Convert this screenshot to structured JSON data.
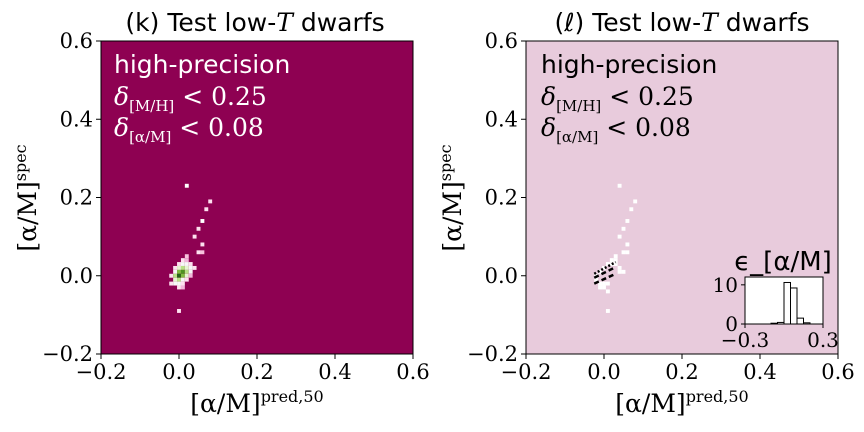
{
  "chart_data": [
    {
      "type": "heatmap",
      "panel_label": "(k)",
      "title_text": "Test low-",
      "title_var": "T",
      "title_suffix": " dwarfs",
      "xlabel": "[α/M]",
      "xlabel_sup": "pred,50",
      "ylabel": "[α/M]",
      "ylabel_sup": "spec",
      "xlim": [
        -0.2,
        0.6
      ],
      "ylim": [
        -0.2,
        0.6
      ],
      "xticks": [
        "−0.2",
        "0.0",
        "0.2",
        "0.4",
        "0.6"
      ],
      "yticks": [
        "−0.2",
        "0.0",
        "0.2",
        "0.4",
        "0.6"
      ],
      "background_color": "#8e0152",
      "annotation": {
        "line1": "high-precision",
        "line2_sym": "δ",
        "line2_sub": "[M/H]",
        "line2_rest": " < 0.25",
        "line3_sym": "δ",
        "line3_sub": "[α/M]",
        "line3_rest": " < 0.08",
        "color": "#ffffff"
      },
      "cells": [
        {
          "x": 0.02,
          "y": 0.23,
          "c": "#ffffff"
        },
        {
          "x": 0.08,
          "y": 0.19,
          "c": "#fde0ef"
        },
        {
          "x": 0.07,
          "y": 0.17,
          "c": "#fde0ef"
        },
        {
          "x": 0.06,
          "y": 0.14,
          "c": "#ffffff"
        },
        {
          "x": 0.05,
          "y": 0.12,
          "c": "#fde0ef"
        },
        {
          "x": 0.04,
          "y": 0.1,
          "c": "#fde0ef"
        },
        {
          "x": 0.06,
          "y": 0.08,
          "c": "#fde0ef"
        },
        {
          "x": 0.05,
          "y": 0.06,
          "c": "#fde0ef"
        },
        {
          "x": 0.06,
          "y": 0.06,
          "c": "#f7c1dd"
        },
        {
          "x": 0.02,
          "y": 0.05,
          "c": "#f7c1dd"
        },
        {
          "x": 0.01,
          "y": 0.04,
          "c": "#fde0ef"
        },
        {
          "x": 0.02,
          "y": 0.04,
          "c": "#f1b6da"
        },
        {
          "x": 0.0,
          "y": 0.03,
          "c": "#fde0ef"
        },
        {
          "x": 0.01,
          "y": 0.03,
          "c": "#f7f7f7"
        },
        {
          "x": 0.02,
          "y": 0.03,
          "c": "#f7f7f7"
        },
        {
          "x": 0.03,
          "y": 0.03,
          "c": "#fde0ef"
        },
        {
          "x": 0.04,
          "y": 0.02,
          "c": "#fde0ef"
        },
        {
          "x": -0.01,
          "y": 0.02,
          "c": "#fde0ef"
        },
        {
          "x": 0.0,
          "y": 0.02,
          "c": "#e6f5d0"
        },
        {
          "x": 0.01,
          "y": 0.02,
          "c": "#b8e186"
        },
        {
          "x": 0.02,
          "y": 0.02,
          "c": "#e6f5d0"
        },
        {
          "x": 0.03,
          "y": 0.02,
          "c": "#f7f7f7"
        },
        {
          "x": -0.01,
          "y": 0.01,
          "c": "#f7f7f7"
        },
        {
          "x": 0.0,
          "y": 0.01,
          "c": "#7fbc41"
        },
        {
          "x": 0.01,
          "y": 0.01,
          "c": "#4d9221"
        },
        {
          "x": 0.02,
          "y": 0.01,
          "c": "#b8e186"
        },
        {
          "x": 0.03,
          "y": 0.01,
          "c": "#f7f7f7"
        },
        {
          "x": -0.02,
          "y": 0.0,
          "c": "#fde0ef"
        },
        {
          "x": -0.01,
          "y": 0.0,
          "c": "#b8e186"
        },
        {
          "x": 0.0,
          "y": 0.0,
          "c": "#276419"
        },
        {
          "x": 0.01,
          "y": 0.0,
          "c": "#7fbc41"
        },
        {
          "x": 0.02,
          "y": 0.0,
          "c": "#e6f5d0"
        },
        {
          "x": 0.03,
          "y": 0.0,
          "c": "#f1b6da"
        },
        {
          "x": -0.01,
          "y": -0.01,
          "c": "#e6f5d0"
        },
        {
          "x": 0.0,
          "y": -0.01,
          "c": "#b8e186"
        },
        {
          "x": 0.01,
          "y": -0.01,
          "c": "#f7f7f7"
        },
        {
          "x": 0.02,
          "y": -0.01,
          "c": "#fde0ef"
        },
        {
          "x": -0.02,
          "y": -0.02,
          "c": "#fde0ef"
        },
        {
          "x": -0.01,
          "y": -0.02,
          "c": "#f7f7f7"
        },
        {
          "x": 0.0,
          "y": -0.02,
          "c": "#f7f7f7"
        },
        {
          "x": 0.01,
          "y": -0.02,
          "c": "#fde0ef"
        },
        {
          "x": 0.0,
          "y": -0.03,
          "c": "#fde0ef"
        },
        {
          "x": 0.01,
          "y": -0.03,
          "c": "#f1b6da"
        },
        {
          "x": 0.0,
          "y": -0.09,
          "c": "#fde0ef"
        }
      ]
    },
    {
      "type": "heatmap",
      "panel_label": "(ℓ)",
      "title_text": "Test low-",
      "title_var": "T",
      "title_suffix": " dwarfs",
      "xlabel": "[α/M]",
      "xlabel_sup": "pred,50",
      "ylabel": "[α/M]",
      "ylabel_sup": "spec",
      "xlim": [
        -0.2,
        0.6
      ],
      "ylim": [
        -0.2,
        0.6
      ],
      "xticks": [
        "−0.2",
        "0.0",
        "0.2",
        "0.4",
        "0.6"
      ],
      "yticks": [
        "−0.2",
        "0.0",
        "0.2",
        "0.4",
        "0.6"
      ],
      "background_color": "#e8cbdc",
      "annotation": {
        "line1": "high-precision",
        "line2_sym": "δ",
        "line2_sub": "[M/H]",
        "line2_rest": " < 0.25",
        "line3_sym": "δ",
        "line3_sub": "[α/M]",
        "line3_rest": " < 0.08",
        "color": "#000000"
      },
      "cells": [
        {
          "x": 0.04,
          "y": 0.23,
          "c": "#ffffff"
        },
        {
          "x": 0.08,
          "y": 0.19,
          "c": "#ffffff"
        },
        {
          "x": 0.07,
          "y": 0.17,
          "c": "#ffffff"
        },
        {
          "x": 0.06,
          "y": 0.14,
          "c": "#ffffff"
        },
        {
          "x": 0.05,
          "y": 0.12,
          "c": "#ffffff"
        },
        {
          "x": 0.04,
          "y": 0.1,
          "c": "#ffffff"
        },
        {
          "x": 0.06,
          "y": 0.08,
          "c": "#ffffff"
        },
        {
          "x": 0.05,
          "y": 0.06,
          "c": "#ffffff"
        },
        {
          "x": 0.06,
          "y": 0.06,
          "c": "#ffffff"
        },
        {
          "x": 0.03,
          "y": 0.05,
          "c": "#ffffff"
        },
        {
          "x": 0.02,
          "y": 0.04,
          "c": "#ffffff"
        },
        {
          "x": 0.03,
          "y": 0.04,
          "c": "#ffffff"
        },
        {
          "x": 0.01,
          "y": 0.03,
          "c": "#ffffff"
        },
        {
          "x": 0.02,
          "y": 0.03,
          "c": "#ffffff"
        },
        {
          "x": 0.03,
          "y": 0.03,
          "c": "#ffffff"
        },
        {
          "x": 0.04,
          "y": 0.02,
          "c": "#ffffff"
        },
        {
          "x": 0.05,
          "y": 0.01,
          "c": "#ffffff"
        },
        {
          "x": 0.04,
          "y": 0.01,
          "c": "#ffffff"
        },
        {
          "x": 0.0,
          "y": 0.02,
          "c": "#ffffff"
        },
        {
          "x": -0.01,
          "y": 0.01,
          "c": "#ffffff"
        },
        {
          "x": -0.02,
          "y": 0.0,
          "c": "#ffffff"
        },
        {
          "x": -0.02,
          "y": -0.01,
          "c": "#ffffff"
        },
        {
          "x": -0.01,
          "y": -0.02,
          "c": "#ffffff"
        },
        {
          "x": 0.0,
          "y": -0.02,
          "c": "#ffffff"
        },
        {
          "x": 0.01,
          "y": -0.02,
          "c": "#ffffff"
        },
        {
          "x": -0.01,
          "y": -0.03,
          "c": "#ffffff"
        },
        {
          "x": 0.0,
          "y": -0.03,
          "c": "#ffffff"
        },
        {
          "x": 0.01,
          "y": -0.04,
          "c": "#ffffff"
        },
        {
          "x": 0.01,
          "y": -0.09,
          "c": "#ffffff"
        }
      ],
      "contour_lines": [
        {
          "x1": -0.025,
          "y1": 0.005,
          "x2": 0.03,
          "y2": 0.035,
          "style": "dotted"
        },
        {
          "x1": -0.025,
          "y1": -0.005,
          "x2": 0.03,
          "y2": 0.022,
          "style": "dashed"
        },
        {
          "x1": -0.025,
          "y1": -0.02,
          "x2": 0.03,
          "y2": 0.005,
          "style": "dashed"
        }
      ],
      "inset": {
        "title": "ϵ_[α/M]",
        "xlim": [
          -0.3,
          0.3
        ],
        "ylim": [
          0,
          12
        ],
        "xticks": [
          "−0.3",
          "0.3"
        ],
        "yticks": [
          "0",
          "10"
        ],
        "bin_edges": [
          -0.3,
          -0.2,
          -0.1,
          -0.05,
          0.0,
          0.05,
          0.1,
          0.15,
          0.2,
          0.3
        ],
        "counts": [
          0,
          0,
          0.2,
          0.4,
          10.6,
          9.2,
          1.5,
          0.3,
          0
        ]
      }
    }
  ]
}
